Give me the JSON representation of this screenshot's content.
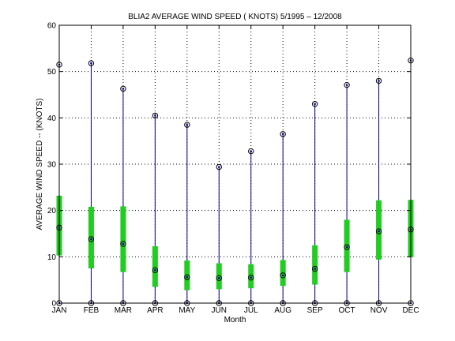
{
  "chart_data": {
    "type": "box",
    "title": "BLIA2  AVERAGE WIND SPEED ( KNOTS) 5/1995 – 12/2008",
    "xlabel": "Month",
    "ylabel": "AVERAGE WIND SPEED -- (KNOTS)",
    "ylim": [
      0,
      60
    ],
    "yticks": [
      0,
      10,
      20,
      30,
      40,
      50,
      60
    ],
    "grid": true,
    "categories": [
      "JAN",
      "FEB",
      "MAR",
      "APR",
      "MAY",
      "JUN",
      "JUL",
      "AUG",
      "SEP",
      "OCT",
      "NOV",
      "DEC"
    ],
    "min": [
      0,
      0,
      0,
      0,
      0,
      0,
      0,
      0,
      0,
      0,
      0,
      0
    ],
    "max": [
      51.5,
      51.8,
      46.3,
      40.5,
      38.5,
      29.4,
      32.8,
      36.5,
      43.0,
      47.1,
      48.0,
      52.4
    ],
    "q_low": [
      10.3,
      7.5,
      6.7,
      3.5,
      2.8,
      3.0,
      3.2,
      3.7,
      4.0,
      6.7,
      9.4,
      9.9
    ],
    "q_high": [
      23.2,
      20.8,
      20.9,
      12.3,
      9.2,
      8.6,
      8.4,
      9.3,
      12.5,
      18.0,
      22.2,
      22.3
    ],
    "median": [
      16.3,
      13.8,
      12.8,
      7.1,
      5.6,
      5.4,
      5.5,
      6.0,
      7.4,
      12.1,
      15.5,
      15.9
    ],
    "colors": {
      "whisker": "#00008b",
      "box": "#22cc22",
      "marker": "#000000",
      "grid": "#000000"
    }
  }
}
